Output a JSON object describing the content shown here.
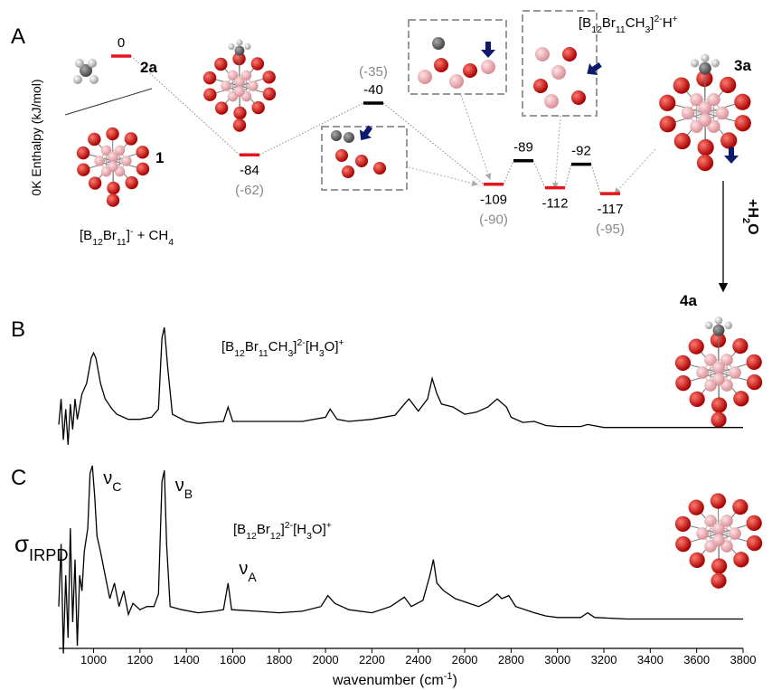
{
  "panel_labels": [
    "A",
    "B",
    "C"
  ],
  "diagram": {
    "y_label": "0K Enthalpy (kJ/mol)",
    "levels": [
      {
        "value": 0,
        "color": "#e8141c"
      },
      {
        "value": -84,
        "alt": {
          "value": -62,
          "label": "(-62)"
        },
        "color": "#e8141c"
      },
      {
        "value": -40,
        "alt": {
          "value": -35,
          "label": "(-35)"
        },
        "color": "#000000"
      },
      {
        "value": -109,
        "alt": {
          "value": -90,
          "label": "(-90)"
        },
        "color": "#e8141c"
      },
      {
        "value": -89,
        "color": "#000000"
      },
      {
        "value": -112,
        "color": "#e8141c"
      },
      {
        "value": -92,
        "color": "#000000"
      },
      {
        "value": -117,
        "alt": {
          "value": -95,
          "label": "(-95)"
        },
        "color": "#e8141c"
      }
    ],
    "species": [
      "2a",
      "1",
      "3a",
      "4a"
    ],
    "formula_1": [
      {
        "text": "[B"
      },
      {
        "text": "12",
        "sub": true
      },
      {
        "text": "Br"
      },
      {
        "text": "11",
        "sub": true
      },
      {
        "text": "]"
      },
      {
        "text": "-",
        "sup": true
      },
      {
        "text": " + CH"
      },
      {
        "text": "4",
        "sub": true
      }
    ],
    "formula_3a": [
      {
        "text": "[B"
      },
      {
        "text": "12",
        "sub": true
      },
      {
        "text": "Br"
      },
      {
        "text": "11",
        "sub": true
      },
      {
        "text": "CH"
      },
      {
        "text": "3",
        "sub": true
      },
      {
        "text": "]"
      },
      {
        "text": "2-",
        "sup": true
      },
      {
        "text": "H"
      },
      {
        "text": "+",
        "sup": true
      }
    ],
    "reagent": [
      {
        "text": "+H"
      },
      {
        "text": "2",
        "sub": true
      },
      {
        "text": "O"
      }
    ]
  },
  "chart_data": [
    {
      "type": "line",
      "annotation": [
        {
          "text": "[B"
        },
        {
          "text": "12",
          "sub": true
        },
        {
          "text": "Br"
        },
        {
          "text": "11",
          "sub": true
        },
        {
          "text": "CH"
        },
        {
          "text": "3",
          "sub": true
        },
        {
          "text": "]"
        },
        {
          "text": "2-",
          "sup": true
        },
        {
          "text": "[H"
        },
        {
          "text": "3",
          "sub": true
        },
        {
          "text": "O]"
        },
        {
          "text": "+",
          "sup": true
        }
      ],
      "xlim": [
        850,
        3800
      ],
      "x": [
        850,
        860,
        870,
        880,
        890,
        900,
        910,
        920,
        930,
        950,
        970,
        990,
        1000,
        1010,
        1030,
        1050,
        1080,
        1100,
        1150,
        1200,
        1250,
        1280,
        1295,
        1305,
        1320,
        1340,
        1400,
        1450,
        1500,
        1560,
        1580,
        1600,
        1700,
        1800,
        1900,
        2000,
        2020,
        2050,
        2100,
        2200,
        2300,
        2340,
        2360,
        2400,
        2440,
        2460,
        2480,
        2500,
        2550,
        2600,
        2650,
        2700,
        2740,
        2780,
        2800,
        2850,
        2900,
        2950,
        3000,
        3100,
        3130,
        3200,
        3400,
        3600,
        3800
      ],
      "series": [
        {
          "color": "#000000",
          "values": [
            0.05,
            0.3,
            -0.1,
            0.2,
            -0.15,
            0.25,
            0.0,
            0.3,
            0.1,
            0.35,
            0.45,
            0.7,
            0.75,
            0.7,
            0.45,
            0.3,
            0.2,
            0.15,
            0.1,
            0.1,
            0.12,
            0.2,
            0.9,
            1.0,
            0.6,
            0.15,
            0.08,
            0.06,
            0.07,
            0.08,
            0.22,
            0.08,
            0.08,
            0.08,
            0.08,
            0.12,
            0.2,
            0.1,
            0.08,
            0.1,
            0.14,
            0.25,
            0.3,
            0.18,
            0.3,
            0.5,
            0.35,
            0.25,
            0.22,
            0.15,
            0.17,
            0.22,
            0.3,
            0.22,
            0.12,
            0.07,
            0.08,
            0.04,
            0.03,
            0.03,
            0.05,
            0.02,
            0.02,
            0.02,
            0.02
          ]
        }
      ]
    },
    {
      "type": "line",
      "annotation": [
        {
          "text": "[B"
        },
        {
          "text": "12",
          "sub": true
        },
        {
          "text": "Br"
        },
        {
          "text": "12",
          "sub": true
        },
        {
          "text": "]"
        },
        {
          "text": "2-",
          "sup": true
        },
        {
          "text": "[H"
        },
        {
          "text": "3",
          "sub": true
        },
        {
          "text": "O]"
        },
        {
          "text": "+",
          "sup": true
        }
      ],
      "y_label": [
        {
          "text": "σ"
        },
        {
          "text": "IRPD",
          "sub": true
        }
      ],
      "x_label": [
        {
          "text": "wavenumber (cm"
        },
        {
          "text": "-1",
          "sup": true
        },
        {
          "text": ")"
        }
      ],
      "peak_labels": [
        {
          "x": 995,
          "segments": [
            {
              "text": "ν"
            },
            {
              "text": "C",
              "sub": true
            }
          ]
        },
        {
          "x": 1305,
          "segments": [
            {
              "text": "ν"
            },
            {
              "text": "B",
              "sub": true
            }
          ]
        },
        {
          "x": 1580,
          "segments": [
            {
              "text": "ν"
            },
            {
              "text": "A",
              "sub": true
            }
          ]
        }
      ],
      "xlim": [
        850,
        3800
      ],
      "xticks": [
        1000,
        1200,
        1400,
        1600,
        1800,
        2000,
        2200,
        2400,
        2600,
        2800,
        3000,
        3200,
        3400,
        3600,
        3800
      ],
      "x": [
        850,
        860,
        870,
        880,
        890,
        900,
        910,
        920,
        930,
        940,
        950,
        960,
        975,
        985,
        995,
        1005,
        1015,
        1030,
        1050,
        1070,
        1090,
        1110,
        1130,
        1150,
        1170,
        1200,
        1230,
        1260,
        1280,
        1295,
        1305,
        1315,
        1330,
        1380,
        1450,
        1520,
        1560,
        1580,
        1595,
        1700,
        1800,
        1900,
        1980,
        2010,
        2040,
        2100,
        2200,
        2280,
        2340,
        2370,
        2420,
        2450,
        2465,
        2480,
        2510,
        2560,
        2620,
        2660,
        2700,
        2740,
        2760,
        2790,
        2820,
        2900,
        2950,
        3000,
        3100,
        3130,
        3160,
        3300,
        3500,
        3800
      ],
      "series": [
        {
          "color": "#000000",
          "values": [
            0.1,
            0.5,
            -0.2,
            0.3,
            -0.1,
            0.6,
            0.0,
            0.4,
            -0.15,
            0.3,
            0.2,
            0.45,
            0.6,
            0.95,
            1.0,
            0.8,
            0.55,
            0.45,
            0.3,
            0.15,
            0.25,
            0.1,
            0.2,
            0.05,
            0.12,
            0.08,
            0.1,
            0.1,
            0.18,
            0.9,
            0.97,
            0.5,
            0.1,
            0.08,
            0.06,
            0.07,
            0.08,
            0.25,
            0.08,
            0.07,
            0.06,
            0.07,
            0.1,
            0.17,
            0.12,
            0.08,
            0.06,
            0.1,
            0.16,
            0.1,
            0.14,
            0.3,
            0.4,
            0.25,
            0.2,
            0.15,
            0.12,
            0.1,
            0.13,
            0.18,
            0.15,
            0.17,
            0.1,
            0.06,
            0.04,
            0.03,
            0.03,
            0.06,
            0.03,
            0.02,
            0.02,
            0.02
          ]
        }
      ]
    }
  ]
}
